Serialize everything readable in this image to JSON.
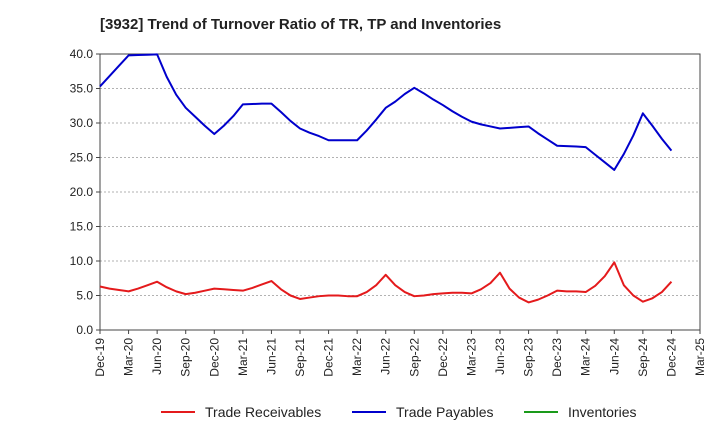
{
  "chart_data": {
    "type": "line",
    "title": "[3932]  Trend of Turnover Ratio of TR, TP and Inventories",
    "xlabel": "",
    "ylabel": "",
    "ylim": [
      0,
      40
    ],
    "yticks": [
      "0.0",
      "5.0",
      "10.0",
      "15.0",
      "20.0",
      "25.0",
      "30.0",
      "35.0",
      "40.0"
    ],
    "categories": [
      "Dec-19",
      "Mar-20",
      "Jun-20",
      "Sep-20",
      "Dec-20",
      "Mar-21",
      "Jun-21",
      "Sep-21",
      "Dec-21",
      "Mar-22",
      "Jun-22",
      "Sep-22",
      "Dec-22",
      "Mar-23",
      "Jun-23",
      "Sep-23",
      "Dec-23",
      "Mar-24",
      "Jun-24",
      "Sep-24",
      "Dec-24",
      "Mar-25"
    ],
    "grid": true,
    "legend_position": "bottom",
    "series": [
      {
        "name": "Trade Receivables",
        "color": "#e41a1c",
        "x": [
          "Dec-19",
          "Jan-20",
          "Feb-20",
          "Mar-20",
          "Apr-20",
          "May-20",
          "Jun-20",
          "Jul-20",
          "Aug-20",
          "Sep-20",
          "Oct-20",
          "Nov-20",
          "Dec-20",
          "Jan-21",
          "Feb-21",
          "Mar-21",
          "Apr-21",
          "May-21",
          "Jun-21",
          "Jul-21",
          "Aug-21",
          "Sep-21",
          "Oct-21",
          "Nov-21",
          "Dec-21",
          "Jan-22",
          "Feb-22",
          "Mar-22",
          "Apr-22",
          "May-22",
          "Jun-22",
          "Jul-22",
          "Aug-22",
          "Sep-22",
          "Oct-22",
          "Nov-22",
          "Dec-22",
          "Jan-23",
          "Feb-23",
          "Mar-23",
          "Apr-23",
          "May-23",
          "Jun-23",
          "Jul-23",
          "Aug-23",
          "Sep-23",
          "Oct-23",
          "Nov-23",
          "Dec-23",
          "Jan-24",
          "Feb-24",
          "Mar-24",
          "Apr-24",
          "May-24",
          "Jun-24",
          "Jul-24",
          "Aug-24",
          "Sep-24",
          "Oct-24",
          "Nov-24",
          "Dec-24"
        ],
        "values": [
          6.3,
          6.0,
          5.8,
          5.6,
          6.0,
          6.5,
          7.0,
          6.2,
          5.6,
          5.2,
          5.4,
          5.7,
          6.0,
          5.9,
          5.8,
          5.7,
          6.1,
          6.6,
          7.1,
          5.9,
          5.0,
          4.5,
          4.7,
          4.9,
          5.0,
          5.0,
          4.9,
          4.9,
          5.5,
          6.5,
          8.0,
          6.5,
          5.5,
          4.9,
          5.0,
          5.2,
          5.3,
          5.4,
          5.4,
          5.3,
          5.9,
          6.8,
          8.3,
          6.0,
          4.7,
          4.0,
          4.4,
          5.0,
          5.7,
          5.6,
          5.6,
          5.5,
          6.4,
          7.8,
          9.8,
          6.5,
          5.0,
          4.1,
          4.6,
          5.5,
          7.0
        ]
      },
      {
        "name": "Trade Payables",
        "color": "#0000cc",
        "x": [
          "Dec-19",
          "Jan-20",
          "Feb-20",
          "Mar-20",
          "Apr-20",
          "May-20",
          "Jun-20",
          "Jul-20",
          "Aug-20",
          "Sep-20",
          "Oct-20",
          "Nov-20",
          "Dec-20",
          "Jan-21",
          "Feb-21",
          "Mar-21",
          "Apr-21",
          "May-21",
          "Jun-21",
          "Jul-21",
          "Aug-21",
          "Sep-21",
          "Oct-21",
          "Nov-21",
          "Dec-21",
          "Jan-22",
          "Feb-22",
          "Mar-22",
          "Apr-22",
          "May-22",
          "Jun-22",
          "Jul-22",
          "Aug-22",
          "Sep-22",
          "Oct-22",
          "Nov-22",
          "Dec-22",
          "Jan-23",
          "Feb-23",
          "Mar-23",
          "Apr-23",
          "May-23",
          "Jun-23",
          "Jul-23",
          "Aug-23",
          "Sep-23",
          "Oct-23",
          "Nov-23",
          "Dec-23",
          "Jan-24",
          "Feb-24",
          "Mar-24",
          "Apr-24",
          "May-24",
          "Jun-24",
          "Jul-24",
          "Aug-24",
          "Sep-24",
          "Oct-24",
          "Nov-24",
          "Dec-24"
        ],
        "values": [
          35.3,
          36.8,
          38.3,
          39.8,
          39.85,
          39.9,
          39.95,
          36.7,
          34.1,
          32.2,
          30.9,
          29.6,
          28.4,
          29.6,
          31.0,
          32.7,
          32.75,
          32.8,
          32.8,
          31.6,
          30.3,
          29.2,
          28.6,
          28.1,
          27.5,
          27.5,
          27.5,
          27.5,
          28.9,
          30.5,
          32.2,
          33.1,
          34.2,
          35.1,
          34.3,
          33.4,
          32.6,
          31.7,
          30.9,
          30.2,
          29.8,
          29.5,
          29.2,
          29.3,
          29.4,
          29.5,
          28.5,
          27.6,
          26.7,
          26.65,
          26.6,
          26.5,
          25.4,
          24.3,
          23.2,
          25.5,
          28.2,
          31.4,
          29.6,
          27.7,
          26.0
        ]
      },
      {
        "name": "Inventories",
        "color": "#1a9a1a",
        "x": [],
        "values": []
      }
    ]
  }
}
